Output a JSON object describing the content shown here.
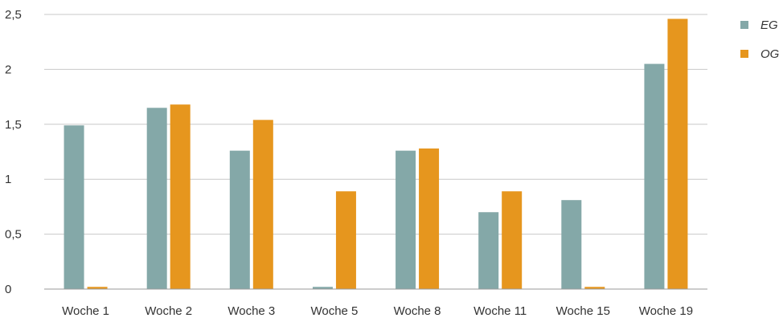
{
  "chart_data": {
    "type": "bar",
    "categories": [
      "Woche 1",
      "Woche 2",
      "Woche 3",
      "Woche 5",
      "Woche 8",
      "Woche 11",
      "Woche 15",
      "Woche 19"
    ],
    "series": [
      {
        "name": "EG",
        "color": "#84a8a8",
        "values": [
          1.49,
          1.65,
          1.26,
          0.02,
          1.26,
          0.7,
          0.81,
          2.05
        ]
      },
      {
        "name": "OG",
        "color": "#e6961e",
        "values": [
          0.02,
          1.68,
          1.54,
          0.89,
          1.28,
          0.89,
          0.02,
          2.46
        ]
      }
    ],
    "y_ticks": [
      "0",
      "0,5",
      "1",
      "1,5",
      "2",
      "2,5"
    ],
    "ylim": [
      0,
      2.5
    ],
    "grid": true,
    "legend_position": "right",
    "gridline_color": "#c8c8c8",
    "axis_color": "#9a9a9a"
  }
}
